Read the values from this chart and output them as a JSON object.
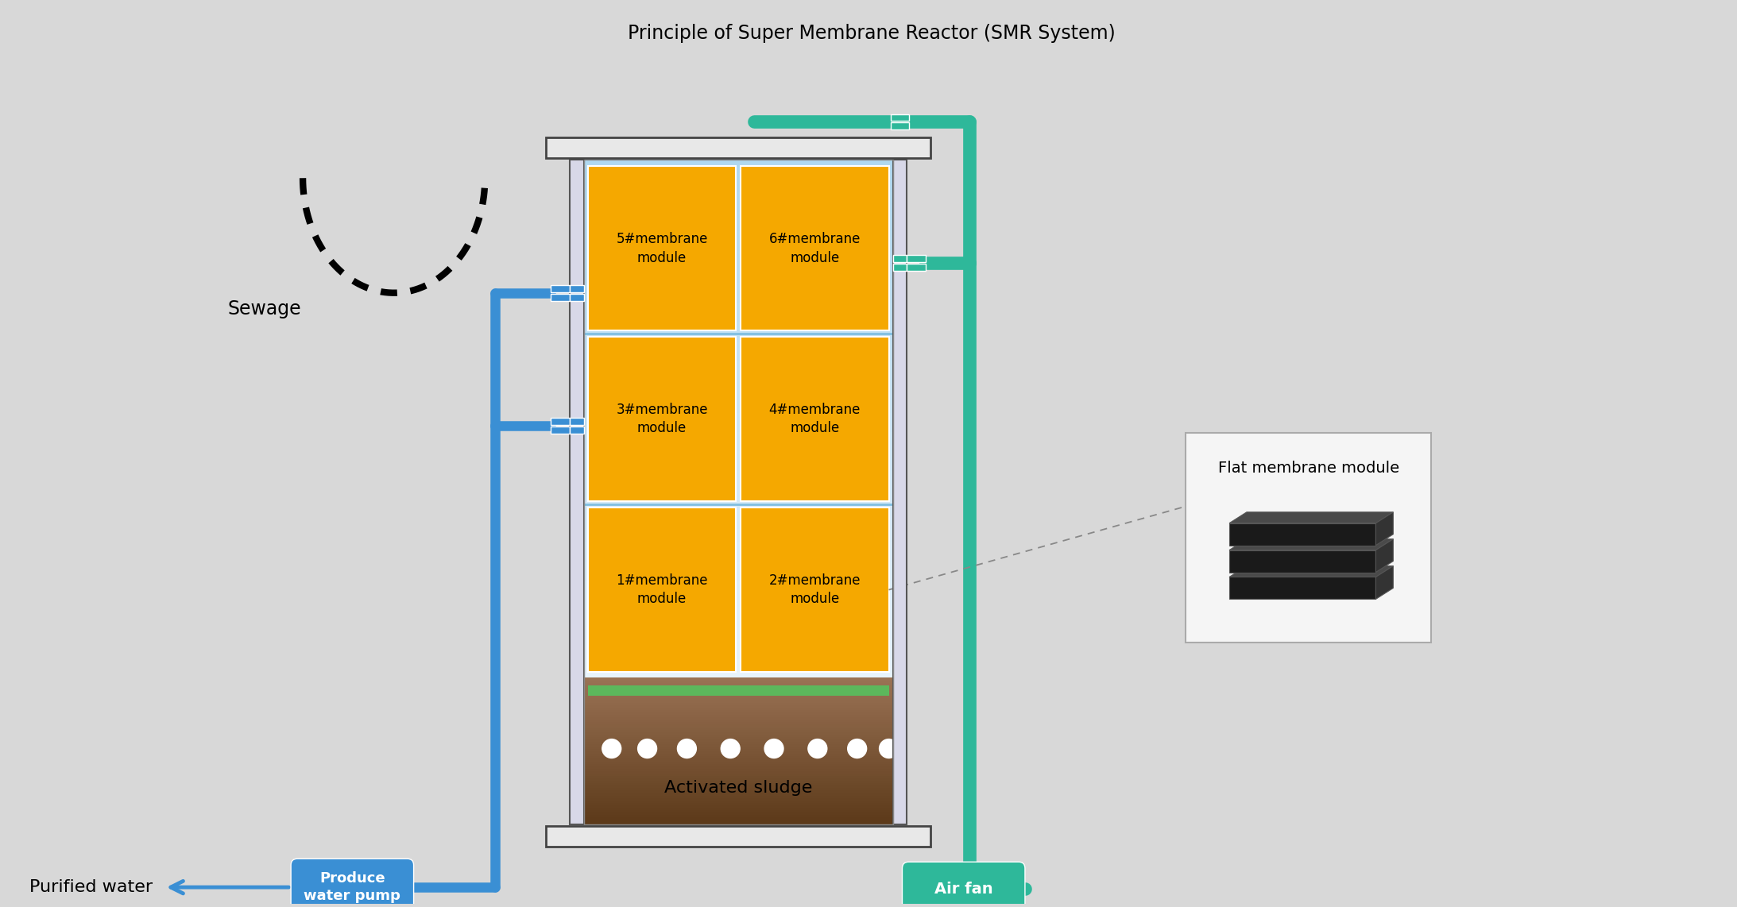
{
  "bg_color": "#d8d8d8",
  "water_top": "#e8f4fc",
  "water_bot": "#b0d8f0",
  "sludge_top": "#9B7355",
  "sludge_bot": "#5C3A1A",
  "membrane_fill": "#F5A800",
  "pipe_blue": "#3A8FD4",
  "pipe_green": "#2EB89A",
  "frame_dark": "#333333",
  "frame_light": "#e0e0e0",
  "pump_blue": "#3A8FD4",
  "airfan_green": "#2EB89A",
  "bubble_white": "#ffffff",
  "green_strip": "#5CB85C",
  "title": "Principle of Super Membrane Reactor (SMR System)",
  "sewage_label": "Sewage",
  "purified_label": "Purified water",
  "pump_label": "Produce\nwater pump",
  "airfan_label": "Air fan",
  "sludge_label": "Activated sludge",
  "flat_label": "Flat membrane module",
  "mem_labels_top": [
    "5#membrane\nmodule",
    "6#membrane\nmodule"
  ],
  "mem_labels_mid": [
    "3#membrane\nmodule",
    "4#membrane\nmodule"
  ],
  "mem_labels_bot": [
    "1#membrane\nmodule",
    "2#membrane\nmodule"
  ]
}
